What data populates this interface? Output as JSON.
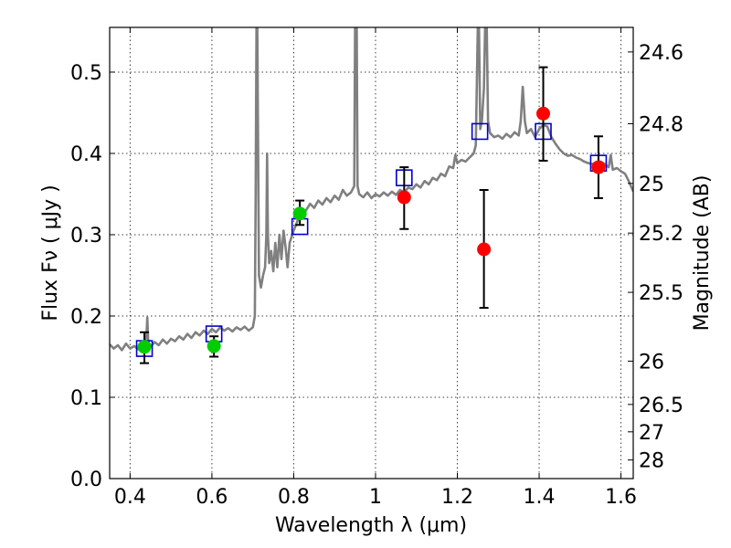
{
  "chart_data": {
    "type": "scatter",
    "xlabel": "Wavelength  λ (μm)",
    "ylabel": "Flux  Fν ( μJy )",
    "ylabel_right": "Magnitude (AB)",
    "xlim": [
      0.35,
      1.63
    ],
    "ylim": [
      0.0,
      0.555
    ],
    "grid": true,
    "x_ticks": [
      {
        "value": 0.4,
        "label": "0.4"
      },
      {
        "value": 0.6,
        "label": "0.6"
      },
      {
        "value": 0.8,
        "label": "0.8"
      },
      {
        "value": 1.0,
        "label": "1"
      },
      {
        "value": 1.2,
        "label": "1.2"
      },
      {
        "value": 1.4,
        "label": "1.4"
      },
      {
        "value": 1.6,
        "label": "1.6"
      }
    ],
    "y_ticks": [
      {
        "value": 0.0,
        "label": "0.0"
      },
      {
        "value": 0.1,
        "label": "0.1"
      },
      {
        "value": 0.2,
        "label": "0.2"
      },
      {
        "value": 0.3,
        "label": "0.3"
      },
      {
        "value": 0.4,
        "label": "0.4"
      },
      {
        "value": 0.5,
        "label": "0.5"
      }
    ],
    "right_ticks": [
      {
        "flux": 0.5248,
        "label": "24.6"
      },
      {
        "flux": 0.4365,
        "label": "24.8"
      },
      {
        "flux": 0.3631,
        "label": "25"
      },
      {
        "flux": 0.302,
        "label": "25.2"
      },
      {
        "flux": 0.2291,
        "label": "25.5"
      },
      {
        "flux": 0.1445,
        "label": "26"
      },
      {
        "flux": 0.0912,
        "label": "26.5"
      },
      {
        "flux": 0.0575,
        "label": "27"
      },
      {
        "flux": 0.0229,
        "label": "28"
      }
    ],
    "model_spectrum": {
      "color": "#808080",
      "points": [
        [
          0.35,
          0.165
        ],
        [
          0.36,
          0.16
        ],
        [
          0.37,
          0.164
        ],
        [
          0.38,
          0.158
        ],
        [
          0.39,
          0.166
        ],
        [
          0.4,
          0.16
        ],
        [
          0.41,
          0.163
        ],
        [
          0.42,
          0.159
        ],
        [
          0.43,
          0.165
        ],
        [
          0.435,
          0.168
        ],
        [
          0.44,
          0.175
        ],
        [
          0.442,
          0.198
        ],
        [
          0.444,
          0.17
        ],
        [
          0.45,
          0.162
        ],
        [
          0.46,
          0.168
        ],
        [
          0.47,
          0.164
        ],
        [
          0.48,
          0.171
        ],
        [
          0.49,
          0.166
        ],
        [
          0.5,
          0.172
        ],
        [
          0.51,
          0.169
        ],
        [
          0.52,
          0.175
        ],
        [
          0.53,
          0.171
        ],
        [
          0.54,
          0.178
        ],
        [
          0.55,
          0.173
        ],
        [
          0.56,
          0.18
        ],
        [
          0.57,
          0.176
        ],
        [
          0.58,
          0.182
        ],
        [
          0.59,
          0.178
        ],
        [
          0.6,
          0.184
        ],
        [
          0.61,
          0.18
        ],
        [
          0.62,
          0.186
        ],
        [
          0.63,
          0.182
        ],
        [
          0.64,
          0.185
        ],
        [
          0.65,
          0.181
        ],
        [
          0.66,
          0.186
        ],
        [
          0.67,
          0.183
        ],
        [
          0.68,
          0.187
        ],
        [
          0.69,
          0.182
        ],
        [
          0.7,
          0.186
        ],
        [
          0.705,
          0.2
        ],
        [
          0.707,
          0.35
        ],
        [
          0.709,
          0.555
        ],
        [
          0.711,
          0.555
        ],
        [
          0.713,
          0.4
        ],
        [
          0.715,
          0.25
        ],
        [
          0.72,
          0.235
        ],
        [
          0.725,
          0.25
        ],
        [
          0.73,
          0.26
        ],
        [
          0.733,
          0.3
        ],
        [
          0.735,
          0.4
        ],
        [
          0.737,
          0.3
        ],
        [
          0.74,
          0.265
        ],
        [
          0.745,
          0.28
        ],
        [
          0.75,
          0.255
        ],
        [
          0.755,
          0.29
        ],
        [
          0.76,
          0.26
        ],
        [
          0.765,
          0.3
        ],
        [
          0.77,
          0.27
        ],
        [
          0.775,
          0.305
        ],
        [
          0.78,
          0.285
        ],
        [
          0.785,
          0.26
        ],
        [
          0.79,
          0.29
        ],
        [
          0.8,
          0.305
        ],
        [
          0.81,
          0.318
        ],
        [
          0.82,
          0.325
        ],
        [
          0.83,
          0.33
        ],
        [
          0.84,
          0.338
        ],
        [
          0.85,
          0.333
        ],
        [
          0.86,
          0.342
        ],
        [
          0.87,
          0.337
        ],
        [
          0.88,
          0.345
        ],
        [
          0.89,
          0.34
        ],
        [
          0.9,
          0.348
        ],
        [
          0.91,
          0.343
        ],
        [
          0.92,
          0.355
        ],
        [
          0.93,
          0.348
        ],
        [
          0.94,
          0.352
        ],
        [
          0.948,
          0.36
        ],
        [
          0.95,
          0.555
        ],
        [
          0.954,
          0.555
        ],
        [
          0.956,
          0.36
        ],
        [
          0.96,
          0.35
        ],
        [
          0.97,
          0.346
        ],
        [
          0.98,
          0.352
        ],
        [
          0.99,
          0.345
        ],
        [
          1.0,
          0.35
        ],
        [
          1.01,
          0.347
        ],
        [
          1.02,
          0.352
        ],
        [
          1.03,
          0.348
        ],
        [
          1.04,
          0.353
        ],
        [
          1.05,
          0.349
        ],
        [
          1.06,
          0.355
        ],
        [
          1.07,
          0.352
        ],
        [
          1.08,
          0.358
        ],
        [
          1.09,
          0.356
        ],
        [
          1.1,
          0.362
        ],
        [
          1.11,
          0.358
        ],
        [
          1.12,
          0.366
        ],
        [
          1.13,
          0.362
        ],
        [
          1.14,
          0.37
        ],
        [
          1.15,
          0.367
        ],
        [
          1.16,
          0.375
        ],
        [
          1.17,
          0.372
        ],
        [
          1.18,
          0.384
        ],
        [
          1.19,
          0.382
        ],
        [
          1.195,
          0.398
        ],
        [
          1.2,
          0.388
        ],
        [
          1.21,
          0.392
        ],
        [
          1.22,
          0.39
        ],
        [
          1.23,
          0.395
        ],
        [
          1.24,
          0.4
        ],
        [
          1.245,
          0.41
        ],
        [
          1.25,
          0.555
        ],
        [
          1.253,
          0.555
        ],
        [
          1.256,
          0.43
        ],
        [
          1.26,
          0.44
        ],
        [
          1.265,
          0.48
        ],
        [
          1.268,
          0.555
        ],
        [
          1.272,
          0.555
        ],
        [
          1.275,
          0.44
        ],
        [
          1.28,
          0.425
        ],
        [
          1.29,
          0.42
        ],
        [
          1.3,
          0.422
        ],
        [
          1.31,
          0.418
        ],
        [
          1.32,
          0.424
        ],
        [
          1.33,
          0.42
        ],
        [
          1.34,
          0.426
        ],
        [
          1.35,
          0.422
        ],
        [
          1.355,
          0.44
        ],
        [
          1.36,
          0.482
        ],
        [
          1.365,
          0.44
        ],
        [
          1.37,
          0.425
        ],
        [
          1.38,
          0.43
        ],
        [
          1.39,
          0.42
        ],
        [
          1.4,
          0.43
        ],
        [
          1.41,
          0.435
        ],
        [
          1.42,
          0.433
        ],
        [
          1.43,
          0.42
        ],
        [
          1.44,
          0.412
        ],
        [
          1.45,
          0.405
        ],
        [
          1.46,
          0.4
        ],
        [
          1.47,
          0.397
        ],
        [
          1.48,
          0.398
        ],
        [
          1.49,
          0.395
        ],
        [
          1.5,
          0.393
        ],
        [
          1.51,
          0.39
        ],
        [
          1.52,
          0.388
        ],
        [
          1.53,
          0.387
        ],
        [
          1.54,
          0.388
        ],
        [
          1.55,
          0.39
        ],
        [
          1.56,
          0.387
        ],
        [
          1.57,
          0.383
        ],
        [
          1.575,
          0.398
        ],
        [
          1.58,
          0.38
        ],
        [
          1.59,
          0.382
        ],
        [
          1.6,
          0.378
        ],
        [
          1.61,
          0.375
        ],
        [
          1.62,
          0.365
        ],
        [
          1.63,
          0.353
        ]
      ]
    },
    "series": [
      {
        "marker": "square",
        "color": "#0000cc",
        "points": [
          {
            "x": 0.435,
            "y": 0.16
          },
          {
            "x": 0.605,
            "y": 0.178
          },
          {
            "x": 0.815,
            "y": 0.31
          },
          {
            "x": 1.07,
            "y": 0.37
          },
          {
            "x": 1.255,
            "y": 0.427
          },
          {
            "x": 1.41,
            "y": 0.427
          },
          {
            "x": 1.545,
            "y": 0.388
          }
        ]
      },
      {
        "marker": "circle",
        "color": "#00cc00",
        "points": [
          {
            "x": 0.435,
            "y": 0.162,
            "yerr_low": 0.142,
            "yerr_high": 0.18
          },
          {
            "x": 0.605,
            "y": 0.163,
            "yerr_low": 0.15,
            "yerr_high": 0.175
          },
          {
            "x": 0.815,
            "y": 0.326,
            "yerr_low": 0.312,
            "yerr_high": 0.342
          }
        ]
      },
      {
        "marker": "circle",
        "color": "#ff0000",
        "points": [
          {
            "x": 1.07,
            "y": 0.346,
            "yerr_low": 0.307,
            "yerr_high": 0.383
          },
          {
            "x": 1.265,
            "y": 0.282,
            "yerr_low": 0.21,
            "yerr_high": 0.355
          },
          {
            "x": 1.41,
            "y": 0.449,
            "yerr_low": 0.391,
            "yerr_high": 0.506
          },
          {
            "x": 1.545,
            "y": 0.383,
            "yerr_low": 0.345,
            "yerr_high": 0.421
          }
        ]
      }
    ]
  }
}
